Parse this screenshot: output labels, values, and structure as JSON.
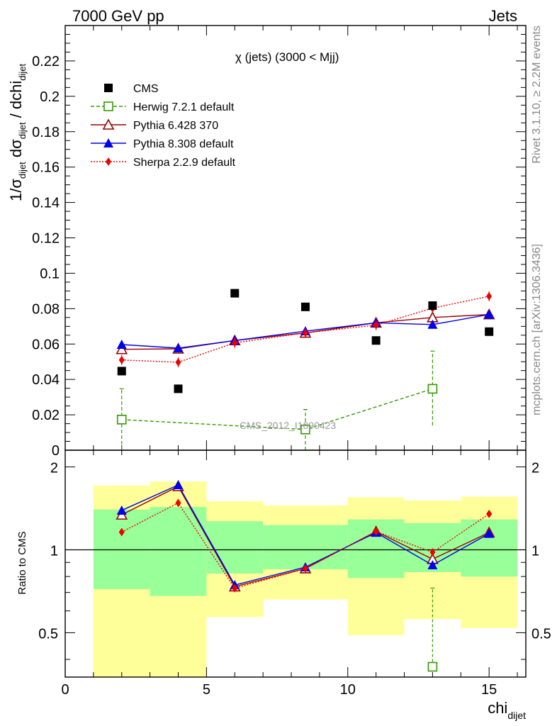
{
  "header": {
    "left_title": "7000 GeV pp",
    "right_title": "Jets",
    "plot_title": "χ (jets) (3000 < Mjj)",
    "side_rivet": "Rivet 3.1.10, ≥ 2.2M events",
    "side_mcplots": "mcplots.cern.ch [arXiv:1306.3436]",
    "watermark": "CMS_2012_I1090423"
  },
  "chart_data": [
    {
      "panel": "main",
      "type": "scatter",
      "ylabel": {
        "main": "1/σ",
        "sub1": "dijet",
        "mid": " dσ",
        "sub2": "dijet",
        "tail": " / dchi",
        "sub3": "dijet"
      },
      "xlim": [
        0,
        16.3
      ],
      "ylim": [
        0,
        0.24
      ],
      "yticks": [
        "0",
        "0.02",
        "0.04",
        "0.06",
        "0.08",
        "0.1",
        "0.12",
        "0.14",
        "0.16",
        "0.18",
        "0.2",
        "0.22"
      ],
      "yticks_values": [
        0,
        0.02,
        0.04,
        0.06,
        0.08,
        0.1,
        0.12,
        0.14,
        0.16,
        0.18,
        0.2,
        0.22
      ],
      "legend_position": "top-left",
      "series": [
        {
          "name": "CMS",
          "color": "#000000",
          "marker": "square-filled",
          "x": [
            2,
            4,
            6,
            8.5,
            11,
            13,
            15
          ],
          "y": [
            0.0447,
            0.0347,
            0.0887,
            0.081,
            0.062,
            0.0817,
            0.067
          ]
        },
        {
          "name": "Herwig 7.2.1 default",
          "color": "#339900",
          "marker": "square-open",
          "line": "dashed",
          "x": [
            2,
            8.5,
            13
          ],
          "y": [
            0.0173,
            0.0117,
            0.0347
          ],
          "err_low": [
            0.0173,
            0.0117,
            0.0207
          ],
          "err_high": [
            0.0174,
            0.0113,
            0.0213
          ]
        },
        {
          "name": "Pythia 6.428 370",
          "color": "#990000",
          "marker": "triangle-open",
          "line": "solid",
          "x": [
            2,
            4,
            6,
            8.5,
            11,
            13,
            15
          ],
          "y": [
            0.057,
            0.0573,
            0.062,
            0.0663,
            0.072,
            0.075,
            0.0767
          ]
        },
        {
          "name": "Pythia 8.308 default",
          "color": "#0000ee",
          "marker": "triangle-filled",
          "line": "solid",
          "x": [
            2,
            4,
            6,
            8.5,
            11,
            13,
            15
          ],
          "y": [
            0.0597,
            0.0577,
            0.062,
            0.0673,
            0.072,
            0.071,
            0.0767
          ]
        },
        {
          "name": "Sherpa 2.2.9 default",
          "color": "#ee0000",
          "marker": "diamond-filled",
          "line": "dotted",
          "x": [
            2,
            4,
            6,
            8.5,
            11,
            13,
            15
          ],
          "y": [
            0.051,
            0.0497,
            0.0607,
            0.0663,
            0.0707,
            0.0803,
            0.087
          ]
        }
      ]
    },
    {
      "panel": "ratio",
      "type": "line",
      "xlabel": {
        "main": "chi",
        "sub": "dijet"
      },
      "ylabel": "Ratio to CMS",
      "xlim": [
        0,
        16.3
      ],
      "ylim": [
        0.345,
        2.3
      ],
      "yscale": "log",
      "xticks": [
        "0",
        "5",
        "10",
        "15"
      ],
      "xticks_values": [
        0,
        5,
        10,
        15
      ],
      "yticks": [
        "0.5",
        "1",
        "2"
      ],
      "yticks_values": [
        0.5,
        1,
        2
      ],
      "uncertainty_bands": {
        "x_edges": [
          1,
          3,
          5,
          7,
          10,
          12,
          14,
          16
        ],
        "stat_low": [
          0.72,
          0.68,
          0.82,
          0.85,
          0.79,
          0.83,
          0.8
        ],
        "stat_high": [
          1.4,
          1.43,
          1.27,
          1.23,
          1.29,
          1.25,
          1.29
        ],
        "total_low": [
          0.345,
          0.345,
          0.57,
          0.66,
          0.49,
          0.56,
          0.52
        ],
        "total_high": [
          1.71,
          1.77,
          1.5,
          1.45,
          1.55,
          1.51,
          1.56
        ],
        "stat_color": "#99ff99",
        "total_color": "#ffff99"
      },
      "series": [
        {
          "name": "Herwig 7.2.1 default",
          "color": "#339900",
          "marker": "square-open",
          "x": [
            13
          ],
          "y": [
            0.376
          ],
          "err_low": [
            0.0
          ],
          "err_high": [
            0.35
          ]
        },
        {
          "name": "Pythia 6.428 370",
          "color": "#990000",
          "marker": "triangle-open",
          "x": [
            2,
            4,
            6,
            8.5,
            11,
            13,
            15
          ],
          "y": [
            1.34,
            1.7,
            0.735,
            0.855,
            1.165,
            0.925,
            1.155
          ]
        },
        {
          "name": "Pythia 8.308 default",
          "color": "#0000ee",
          "marker": "triangle-filled",
          "x": [
            2,
            4,
            6,
            8.5,
            11,
            13,
            15
          ],
          "y": [
            1.39,
            1.72,
            0.745,
            0.865,
            1.155,
            0.88,
            1.145
          ]
        },
        {
          "name": "Sherpa 2.2.9 default",
          "color": "#ee0000",
          "marker": "diamond-filled",
          "x": [
            2,
            4,
            6,
            8.5,
            11,
            13,
            15
          ],
          "y": [
            1.16,
            1.48,
            0.725,
            0.855,
            1.165,
            0.98,
            1.35
          ]
        }
      ]
    }
  ]
}
